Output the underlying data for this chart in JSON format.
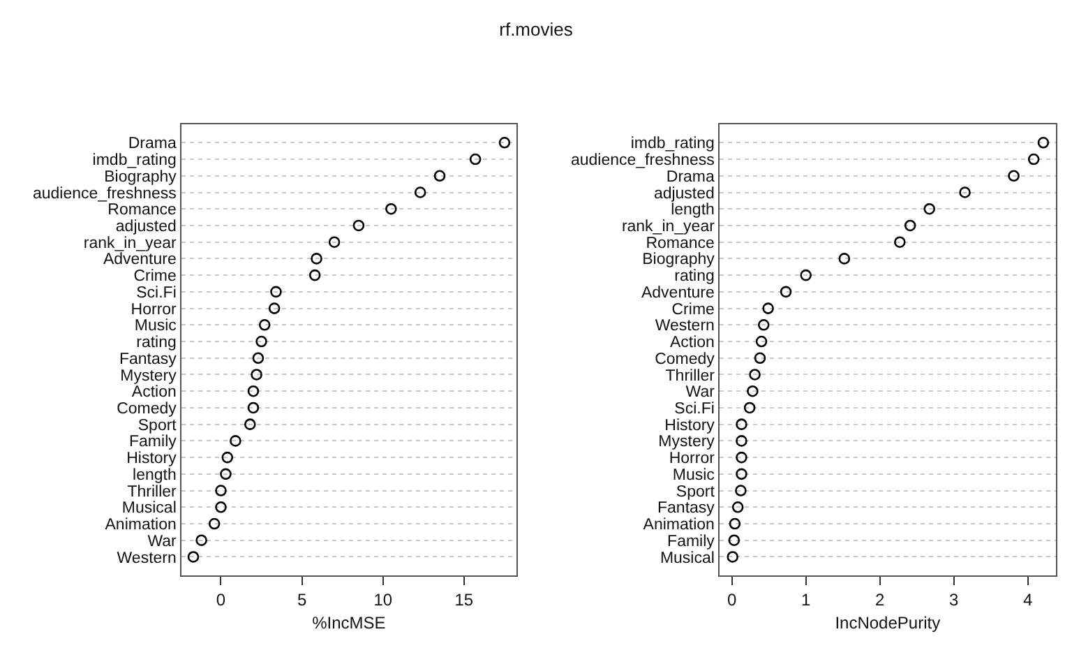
{
  "chart_data": [
    {
      "type": "scatter",
      "title": "rf.movies",
      "orientation": "horizontal",
      "xlabel": "%IncMSE",
      "marker": "circle",
      "grid": "y",
      "color": "#000000",
      "categories": [
        "Drama",
        "imdb_rating",
        "Biography",
        "audience_freshness",
        "Romance",
        "adjusted",
        "rank_in_year",
        "Adventure",
        "Crime",
        "Sci.Fi",
        "Horror",
        "Music",
        "rating",
        "Fantasy",
        "Mystery",
        "Action",
        "Comedy",
        "Sport",
        "Family",
        "History",
        "length",
        "Thriller",
        "Musical",
        "Animation",
        "War",
        "Western"
      ],
      "values": [
        17.5,
        15.7,
        13.5,
        12.3,
        10.5,
        8.5,
        7.0,
        5.9,
        5.8,
        3.4,
        3.3,
        2.7,
        2.5,
        2.3,
        2.2,
        2.0,
        2.0,
        1.8,
        0.9,
        0.4,
        0.3,
        0.0,
        0.0,
        -0.4,
        -1.2,
        -1.7
      ],
      "xlim": [
        -2.45,
        18.25
      ],
      "xticks": [
        0,
        5,
        10,
        15
      ]
    },
    {
      "type": "scatter",
      "orientation": "horizontal",
      "xlabel": "IncNodePurity",
      "marker": "circle",
      "grid": "y",
      "color": "#000000",
      "categories": [
        "imdb_rating",
        "audience_freshness",
        "Drama",
        "adjusted",
        "length",
        "rank_in_year",
        "Romance",
        "Biography",
        "rating",
        "Adventure",
        "Crime",
        "Western",
        "Action",
        "Comedy",
        "Thriller",
        "War",
        "Sci.Fi",
        "History",
        "Mystery",
        "Horror",
        "Music",
        "Sport",
        "Fantasy",
        "Animation",
        "Family",
        "Musical"
      ],
      "values": [
        4.21,
        4.08,
        3.81,
        3.15,
        2.67,
        2.41,
        2.27,
        1.52,
        1.0,
        0.73,
        0.49,
        0.43,
        0.4,
        0.38,
        0.31,
        0.28,
        0.24,
        0.13,
        0.13,
        0.13,
        0.13,
        0.12,
        0.08,
        0.04,
        0.03,
        0.01
      ],
      "xlim": [
        -0.17,
        4.38
      ],
      "xticks": [
        0,
        1,
        2,
        3,
        4
      ]
    }
  ]
}
